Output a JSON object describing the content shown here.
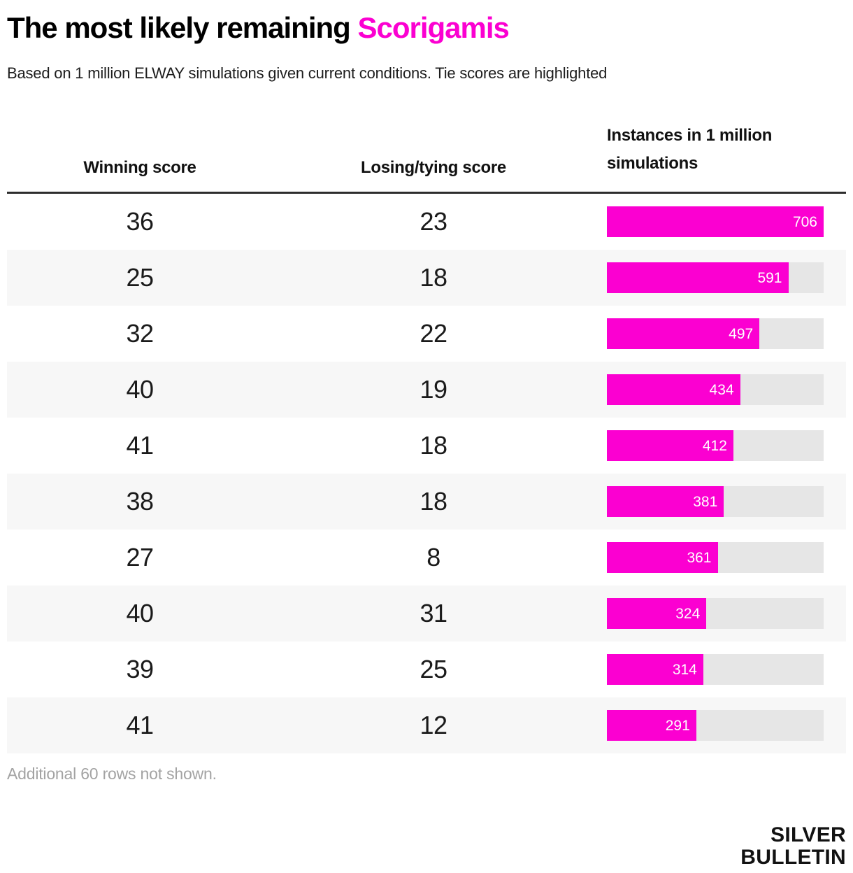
{
  "colors": {
    "accent_pink": "#fb00d1",
    "bar_pink": "#fb00d1",
    "bar_track_gray": "#e6e6e6",
    "row_alt_bg": "#f7f7f7",
    "header_rule_dark": "#2d2d2d",
    "bar_label_white": "#ffffff",
    "note_gray": "#a3a3a3"
  },
  "header": {
    "title_black": "The most likely remaining",
    "title_accent": "Scorigamis",
    "subtitle": "Based on 1 million ELWAY simulations given current conditions. Tie scores are highlighted"
  },
  "table": {
    "col1_header": "Winning score",
    "col2_header": "Losing/tying score",
    "col3_header_line1": "Instances in 1 million",
    "col3_header_line2": "simulations"
  },
  "chart_data": {
    "type": "bar",
    "title": "The most likely remaining Scorigamis",
    "subtitle": "Based on 1 million ELWAY simulations given current conditions. Tie scores are highlighted",
    "columns": [
      "Winning score",
      "Losing/tying score",
      "Instances in 1 million simulations"
    ],
    "rows": [
      {
        "winning_score": 36,
        "losing_score": 23,
        "instances": 706
      },
      {
        "winning_score": 25,
        "losing_score": 18,
        "instances": 591
      },
      {
        "winning_score": 32,
        "losing_score": 22,
        "instances": 497
      },
      {
        "winning_score": 40,
        "losing_score": 19,
        "instances": 434
      },
      {
        "winning_score": 41,
        "losing_score": 18,
        "instances": 412
      },
      {
        "winning_score": 38,
        "losing_score": 18,
        "instances": 381
      },
      {
        "winning_score": 27,
        "losing_score": 8,
        "instances": 361
      },
      {
        "winning_score": 40,
        "losing_score": 31,
        "instances": 324
      },
      {
        "winning_score": 39,
        "losing_score": 25,
        "instances": 314
      },
      {
        "winning_score": 41,
        "losing_score": 12,
        "instances": 291
      }
    ],
    "max_value": 706,
    "xlim": [
      0,
      706
    ],
    "bar_labels_inside": true,
    "legend": "none",
    "grid": "off"
  },
  "footer": {
    "note": "Additional 60 rows not shown.",
    "logo_line1": "SILVER",
    "logo_line2": "BULLETIN"
  }
}
